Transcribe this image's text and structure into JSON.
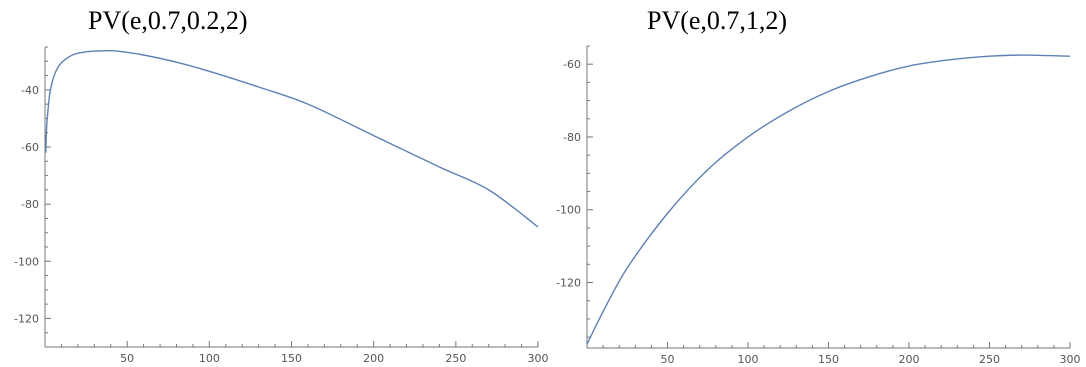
{
  "colors": {
    "axis": "#777777",
    "curve": "#5e81b5",
    "tick_text": "#555555"
  },
  "chart_data": [
    {
      "type": "line",
      "title": "PV(e,0.7,0.2,2)",
      "xlabel": "",
      "ylabel": "",
      "xlim": [
        0,
        300
      ],
      "ylim": [
        -130,
        -25
      ],
      "x_ticks": [
        50,
        100,
        150,
        200,
        250,
        300
      ],
      "y_ticks": [
        -40,
        -60,
        -80,
        -100,
        -120
      ],
      "x_tick_labels": [
        "50",
        "100",
        "150",
        "200",
        "250",
        "300"
      ],
      "y_tick_labels": [
        "-40",
        "-60",
        "-80",
        "-100",
        "-120"
      ],
      "grid": false,
      "series": [
        {
          "x": [
            0.5,
            1,
            2,
            3,
            5,
            8,
            12,
            18,
            25,
            32,
            38,
            45,
            60,
            80,
            100,
            130,
            160,
            200,
            240,
            270,
            300
          ],
          "y": [
            -62,
            -53,
            -46,
            -41,
            -36,
            -32,
            -29.5,
            -27.5,
            -26.7,
            -26.4,
            -26.3,
            -26.5,
            -27.8,
            -30.3,
            -33.5,
            -39,
            -45,
            -56,
            -67,
            -75,
            -88
          ]
        }
      ]
    },
    {
      "type": "line",
      "title": "PV(e,0.7,1,2)",
      "xlabel": "",
      "ylabel": "",
      "xlim": [
        0,
        300
      ],
      "ylim": [
        -138,
        -55
      ],
      "x_ticks": [
        50,
        100,
        150,
        200,
        250,
        300
      ],
      "y_ticks": [
        -60,
        -80,
        -100,
        -120
      ],
      "x_tick_labels": [
        "50",
        "100",
        "150",
        "200",
        "250",
        "300"
      ],
      "y_tick_labels": [
        "-60",
        "-80",
        "-100",
        "-120"
      ],
      "grid": false,
      "series": [
        {
          "x": [
            0,
            10,
            25,
            50,
            75,
            100,
            125,
            150,
            175,
            200,
            225,
            250,
            270,
            300
          ],
          "y": [
            -137,
            -128,
            -116,
            -101,
            -89,
            -80,
            -73,
            -67.5,
            -63.5,
            -60.5,
            -58.8,
            -57.8,
            -57.5,
            -57.8
          ]
        }
      ]
    }
  ]
}
